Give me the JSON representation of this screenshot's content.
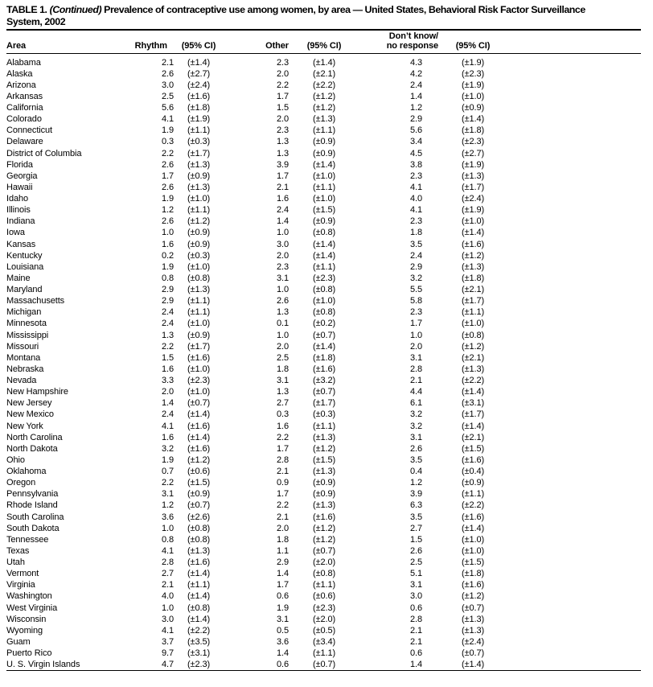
{
  "colors": {
    "background": "#ffffff",
    "text": "#000000",
    "rule": "#000000"
  },
  "title": {
    "table_label": "TABLE 1.",
    "continued": "(Continued)",
    "line1_rest": "Prevalence of contraceptive use among women, by area — United States, Behavioral Risk Factor Surveillance",
    "line2": "System, 2002"
  },
  "table": {
    "header": {
      "area": "Area",
      "rhythm": "Rhythm",
      "ci_1": "(95% CI)",
      "other": "Other",
      "ci_2": "(95% CI)",
      "dontknow_line1": "Don’t know/",
      "dontknow_line2": "no response",
      "ci_3": "(95% CI)"
    },
    "rows": [
      [
        "Alabama",
        "2.1",
        "(±1.4)",
        "2.3",
        "(±1.4)",
        "4.3",
        "(±1.9)"
      ],
      [
        "Alaska",
        "2.6",
        "(±2.7)",
        "2.0",
        "(±2.1)",
        "4.2",
        "(±2.3)"
      ],
      [
        "Arizona",
        "3.0",
        "(±2.4)",
        "2.2",
        "(±2.2)",
        "2.4",
        "(±1.9)"
      ],
      [
        "Arkansas",
        "2.5",
        "(±1.6)",
        "1.7",
        "(±1.2)",
        "1.4",
        "(±1.0)"
      ],
      [
        "California",
        "5.6",
        "(±1.8)",
        "1.5",
        "(±1.2)",
        "1.2",
        "(±0.9)"
      ],
      [
        "Colorado",
        "4.1",
        "(±1.9)",
        "2.0",
        "(±1.3)",
        "2.9",
        "(±1.4)"
      ],
      [
        "Connecticut",
        "1.9",
        "(±1.1)",
        "2.3",
        "(±1.1)",
        "5.6",
        "(±1.8)"
      ],
      [
        "Delaware",
        "0.3",
        "(±0.3)",
        "1.3",
        "(±0.9)",
        "3.4",
        "(±2.3)"
      ],
      [
        "District of Columbia",
        "2.2",
        "(±1.7)",
        "1.3",
        "(±0.9)",
        "4.5",
        "(±2.7)"
      ],
      [
        "Florida",
        "2.6",
        "(±1.3)",
        "3.9",
        "(±1.4)",
        "3.8",
        "(±1.9)"
      ],
      [
        "Georgia",
        "1.7",
        "(±0.9)",
        "1.7",
        "(±1.0)",
        "2.3",
        "(±1.3)"
      ],
      [
        "Hawaii",
        "2.6",
        "(±1.3)",
        "2.1",
        "(±1.1)",
        "4.1",
        "(±1.7)"
      ],
      [
        "Idaho",
        "1.9",
        "(±1.0)",
        "1.6",
        "(±1.0)",
        "4.0",
        "(±2.4)"
      ],
      [
        "Illinois",
        "1.2",
        "(±1.1)",
        "2.4",
        "(±1.5)",
        "4.1",
        "(±1.9)"
      ],
      [
        "Indiana",
        "2.6",
        "(±1.2)",
        "1.4",
        "(±0.9)",
        "2.3",
        "(±1.0)"
      ],
      [
        "Iowa",
        "1.0",
        "(±0.9)",
        "1.0",
        "(±0.8)",
        "1.8",
        "(±1.4)"
      ],
      [
        "Kansas",
        "1.6",
        "(±0.9)",
        "3.0",
        "(±1.4)",
        "3.5",
        "(±1.6)"
      ],
      [
        "Kentucky",
        "0.2",
        "(±0.3)",
        "2.0",
        "(±1.4)",
        "2.4",
        "(±1.2)"
      ],
      [
        "Louisiana",
        "1.9",
        "(±1.0)",
        "2.3",
        "(±1.1)",
        "2.9",
        "(±1.3)"
      ],
      [
        "Maine",
        "0.8",
        "(±0.8)",
        "3.1",
        "(±2.3)",
        "3.2",
        "(±1.8)"
      ],
      [
        "Maryland",
        "2.9",
        "(±1.3)",
        "1.0",
        "(±0.8)",
        "5.5",
        "(±2.1)"
      ],
      [
        "Massachusetts",
        "2.9",
        "(±1.1)",
        "2.6",
        "(±1.0)",
        "5.8",
        "(±1.7)"
      ],
      [
        "Michigan",
        "2.4",
        "(±1.1)",
        "1.3",
        "(±0.8)",
        "2.3",
        "(±1.1)"
      ],
      [
        "Minnesota",
        "2.4",
        "(±1.0)",
        "0.1",
        "(±0.2)",
        "1.7",
        "(±1.0)"
      ],
      [
        "Mississippi",
        "1.3",
        "(±0.9)",
        "1.0",
        "(±0.7)",
        "1.0",
        "(±0.8)"
      ],
      [
        "Missouri",
        "2.2",
        "(±1.7)",
        "2.0",
        "(±1.4)",
        "2.0",
        "(±1.2)"
      ],
      [
        "Montana",
        "1.5",
        "(±1.6)",
        "2.5",
        "(±1.8)",
        "3.1",
        "(±2.1)"
      ],
      [
        "Nebraska",
        "1.6",
        "(±1.0)",
        "1.8",
        "(±1.6)",
        "2.8",
        "(±1.3)"
      ],
      [
        "Nevada",
        "3.3",
        "(±2.3)",
        "3.1",
        "(±3.2)",
        "2.1",
        "(±2.2)"
      ],
      [
        "New Hampshire",
        "2.0",
        "(±1.0)",
        "1.3",
        "(±0.7)",
        "4.4",
        "(±1.4)"
      ],
      [
        "New Jersey",
        "1.4",
        "(±0.7)",
        "2.7",
        "(±1.7)",
        "6.1",
        "(±3.1)"
      ],
      [
        "New Mexico",
        "2.4",
        "(±1.4)",
        "0.3",
        "(±0.3)",
        "3.2",
        "(±1.7)"
      ],
      [
        "New York",
        "4.1",
        "(±1.6)",
        "1.6",
        "(±1.1)",
        "3.2",
        "(±1.4)"
      ],
      [
        "North Carolina",
        "1.6",
        "(±1.4)",
        "2.2",
        "(±1.3)",
        "3.1",
        "(±2.1)"
      ],
      [
        "North Dakota",
        "3.2",
        "(±1.6)",
        "1.7",
        "(±1.2)",
        "2.6",
        "(±1.5)"
      ],
      [
        "Ohio",
        "1.9",
        "(±1.2)",
        "2.8",
        "(±1.5)",
        "3.5",
        "(±1.6)"
      ],
      [
        "Oklahoma",
        "0.7",
        "(±0.6)",
        "2.1",
        "(±1.3)",
        "0.4",
        "(±0.4)"
      ],
      [
        "Oregon",
        "2.2",
        "(±1.5)",
        "0.9",
        "(±0.9)",
        "1.2",
        "(±0.9)"
      ],
      [
        "Pennsylvania",
        "3.1",
        "(±0.9)",
        "1.7",
        "(±0.9)",
        "3.9",
        "(±1.1)"
      ],
      [
        "Rhode Island",
        "1.2",
        "(±0.7)",
        "2.2",
        "(±1.3)",
        "6.3",
        "(±2.2)"
      ],
      [
        "South Carolina",
        "3.6",
        "(±2.6)",
        "2.1",
        "(±1.6)",
        "3.5",
        "(±1.6)"
      ],
      [
        "South Dakota",
        "1.0",
        "(±0.8)",
        "2.0",
        "(±1.2)",
        "2.7",
        "(±1.4)"
      ],
      [
        "Tennessee",
        "0.8",
        "(±0.8)",
        "1.8",
        "(±1.2)",
        "1.5",
        "(±1.0)"
      ],
      [
        "Texas",
        "4.1",
        "(±1.3)",
        "1.1",
        "(±0.7)",
        "2.6",
        "(±1.0)"
      ],
      [
        "Utah",
        "2.8",
        "(±1.6)",
        "2.9",
        "(±2.0)",
        "2.5",
        "(±1.5)"
      ],
      [
        "Vermont",
        "2.7",
        "(±1.4)",
        "1.4",
        "(±0.8)",
        "5.1",
        "(±1.8)"
      ],
      [
        "Virginia",
        "2.1",
        "(±1.1)",
        "1.7",
        "(±1.1)",
        "3.1",
        "(±1.6)"
      ],
      [
        "Washington",
        "4.0",
        "(±1.4)",
        "0.6",
        "(±0.6)",
        "3.0",
        "(±1.2)"
      ],
      [
        "West Virginia",
        "1.0",
        "(±0.8)",
        "1.9",
        "(±2.3)",
        "0.6",
        "(±0.7)"
      ],
      [
        "Wisconsin",
        "3.0",
        "(±1.4)",
        "3.1",
        "(±2.0)",
        "2.8",
        "(±1.3)"
      ],
      [
        "Wyoming",
        "4.1",
        "(±2.2)",
        "0.5",
        "(±0.5)",
        "2.1",
        "(±1.3)"
      ],
      [
        "Guam",
        "3.7",
        "(±3.5)",
        "3.6",
        "(±3.4)",
        "2.1",
        "(±2.4)"
      ],
      [
        "Puerto Rico",
        "9.7",
        "(±3.1)",
        "1.4",
        "(±1.1)",
        "0.6",
        "(±0.7)"
      ],
      [
        "U. S. Virgin Islands",
        "4.7",
        "(±2.3)",
        "0.6",
        "(±0.7)",
        "1.4",
        "(±1.4)"
      ]
    ]
  }
}
